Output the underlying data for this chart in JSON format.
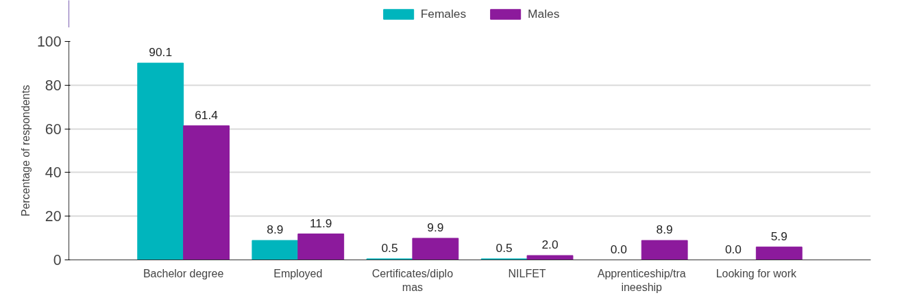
{
  "chart_data": {
    "type": "bar",
    "ylabel": "Percentage of respondents",
    "categories": [
      "Bachelor degree",
      "Employed",
      "Certificates/diplomas",
      "NILFET",
      "Apprenticeship/traineeship",
      "Looking for work"
    ],
    "series": [
      {
        "name": "Females",
        "color": "#00b5bd",
        "values": [
          90.1,
          8.9,
          0.5,
          0.5,
          0.0,
          0.0
        ],
        "value_labels": [
          "90.1",
          "8.9",
          "0.5",
          "0.5",
          "0.0",
          "0.0"
        ]
      },
      {
        "name": "Males",
        "color": "#8c1a9c",
        "values": [
          61.4,
          11.9,
          9.9,
          2.0,
          8.9,
          5.9
        ],
        "value_labels": [
          "61.4",
          "11.9",
          "9.9",
          "2.0",
          "8.9",
          "5.9"
        ]
      }
    ],
    "ylim": [
      0,
      100
    ],
    "yticks": [
      0,
      20,
      40,
      60,
      80,
      100
    ],
    "grid": "y",
    "legend": "top"
  }
}
